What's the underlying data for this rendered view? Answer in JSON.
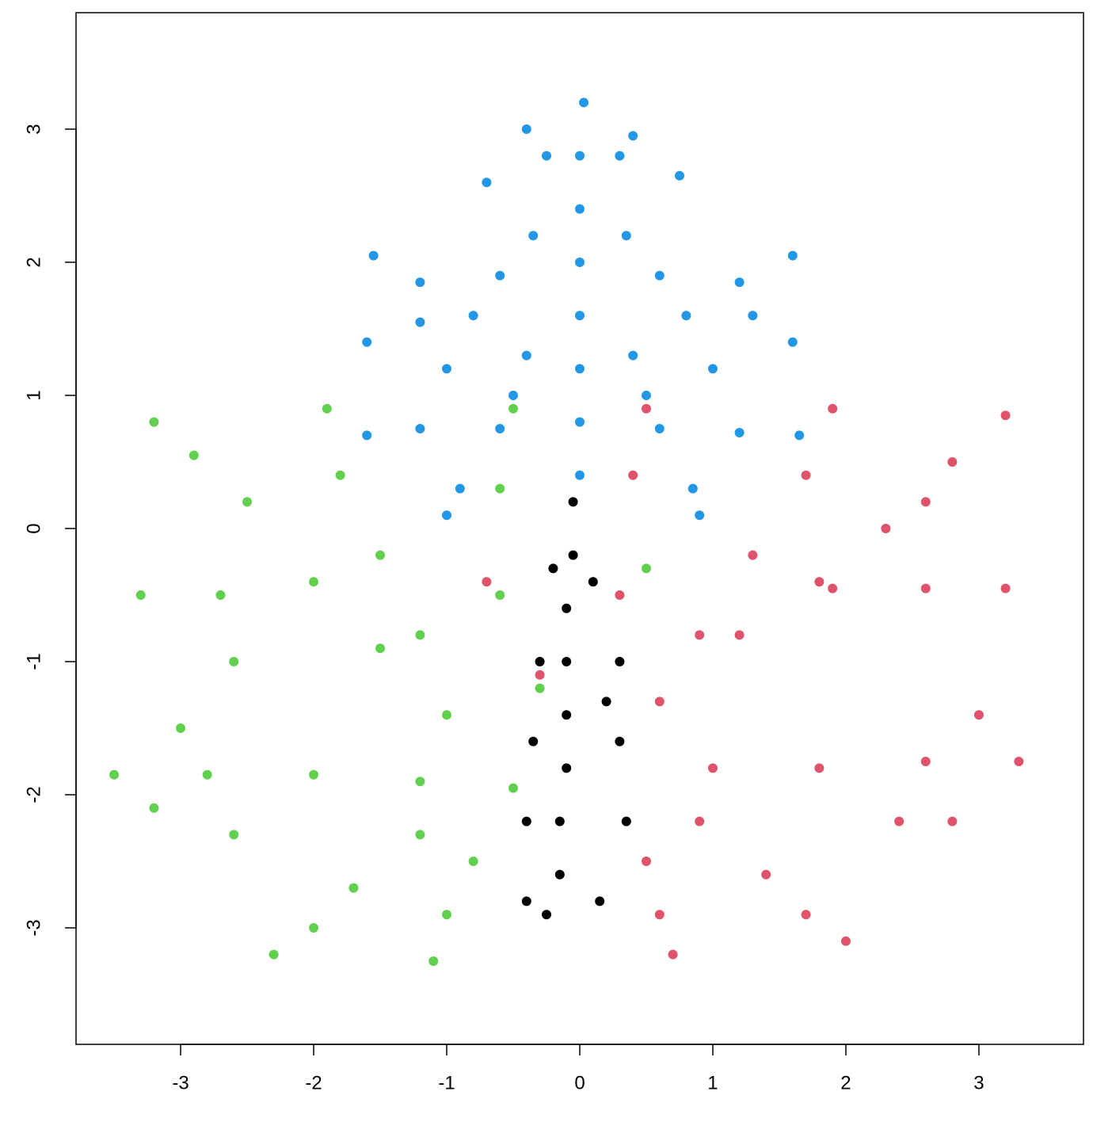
{
  "chart_data": {
    "type": "scatter",
    "xlim": [
      -3.786,
      3.786
    ],
    "ylim": [
      -3.875,
      3.875
    ],
    "xticks": [
      -3,
      -2,
      -1,
      0,
      1,
      2,
      3
    ],
    "yticks": [
      -3,
      -2,
      -1,
      0,
      1,
      2,
      3
    ],
    "series": [
      {
        "color": "#2297E6",
        "x": [
          0,
          0,
          0,
          0,
          0,
          0,
          0,
          0.03,
          -0.4,
          -0.8,
          -1.2,
          -1.55,
          0.4,
          0.8,
          1.2,
          1.6,
          -0.5,
          -1.0,
          -1.6,
          0.5,
          1.0,
          1.6,
          -0.6,
          -1.2,
          -1.6,
          0.6,
          1.2,
          1.65,
          -0.35,
          -0.7,
          0.35,
          0.75,
          -0.25,
          -0.4,
          0.3,
          0.4,
          -0.9,
          -1.0,
          0.85,
          0.9,
          -1.2,
          1.3,
          -0.6,
          0.6
        ],
        "values": [
          0.4,
          0.8,
          1.2,
          1.6,
          2.0,
          2.4,
          2.8,
          3.2,
          1.3,
          1.6,
          1.85,
          2.05,
          1.3,
          1.6,
          1.85,
          2.05,
          1.0,
          1.2,
          1.4,
          1.0,
          1.2,
          1.4,
          0.75,
          0.75,
          0.7,
          0.75,
          0.72,
          0.7,
          2.2,
          2.6,
          2.2,
          2.65,
          2.8,
          3.0,
          2.8,
          2.95,
          0.3,
          0.1,
          0.3,
          0.1,
          1.55,
          1.6,
          1.9,
          1.9
        ]
      },
      {
        "color": "#61D04F",
        "x": [
          -0.5,
          -1.0,
          -1.5,
          -2.0,
          -2.5,
          -2.9,
          -3.2,
          -1.2,
          -2.0,
          -2.8,
          -3.5,
          -2.7,
          -3.3,
          -1.2,
          -1.5,
          -1.8,
          -1.9,
          -0.8,
          -1.0,
          -1.1,
          -1.2,
          -1.7,
          -2.0,
          -2.3,
          -2.6,
          -3.2,
          -0.6,
          -0.6,
          -0.5,
          -0.3,
          0.5,
          -2.6,
          -3.0
        ],
        "values": [
          -1.95,
          -1.4,
          -0.9,
          -0.4,
          0.2,
          0.55,
          0.8,
          -1.9,
          -1.85,
          -1.85,
          -1.85,
          -0.5,
          -0.5,
          -0.8,
          -0.2,
          0.4,
          0.9,
          -2.5,
          -2.9,
          -3.25,
          -2.3,
          -2.7,
          -3.0,
          -3.2,
          -2.3,
          -2.1,
          -0.5,
          0.3,
          0.9,
          -1.2,
          -0.3,
          -1.0,
          -1.5
        ]
      },
      {
        "color": "#DF536B",
        "x": [
          0.6,
          1.2,
          1.8,
          2.3,
          2.8,
          3.2,
          1.0,
          1.8,
          2.6,
          3.3,
          1.9,
          2.6,
          3.2,
          0.9,
          1.3,
          1.7,
          1.9,
          0.5,
          0.6,
          0.7,
          0.9,
          1.4,
          1.7,
          2.0,
          2.4,
          2.8,
          0.3,
          0.4,
          0.5,
          -0.7,
          -0.3,
          2.6,
          3.0
        ],
        "values": [
          -1.3,
          -0.8,
          -0.4,
          0.0,
          0.5,
          0.85,
          -1.8,
          -1.8,
          -1.75,
          -1.75,
          -0.45,
          -0.45,
          -0.45,
          -0.8,
          -0.2,
          0.4,
          0.9,
          -2.5,
          -2.9,
          -3.2,
          -2.2,
          -2.6,
          -2.9,
          -3.1,
          -2.2,
          -2.2,
          -0.5,
          0.4,
          0.9,
          -0.4,
          -1.1,
          0.2,
          -1.4
        ]
      },
      {
        "color": "#000000",
        "x": [
          -0.05,
          -0.05,
          -0.1,
          -0.1,
          -0.1,
          -0.1,
          -0.15,
          -0.15,
          -0.3,
          -0.35,
          -0.4,
          -0.4,
          0.3,
          0.3,
          0.35,
          0.15,
          -0.25,
          0.1,
          0.2,
          -0.2
        ],
        "values": [
          0.2,
          -0.2,
          -0.6,
          -1.0,
          -1.4,
          -1.8,
          -2.2,
          -2.6,
          -1.0,
          -1.6,
          -2.2,
          -2.8,
          -1.0,
          -1.6,
          -2.2,
          -2.8,
          -2.9,
          -0.4,
          -1.3,
          -0.3
        ]
      }
    ]
  }
}
